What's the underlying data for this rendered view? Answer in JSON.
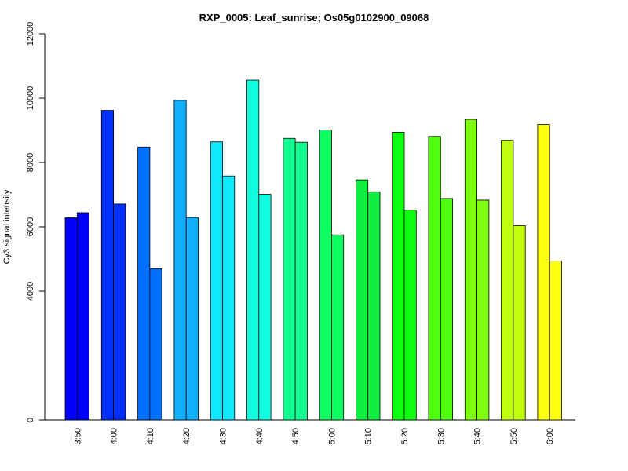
{
  "chart_data": {
    "type": "bar",
    "title": "RXP_0005: Leaf_sunrise; Os05g0102900_09068",
    "xlabel": "",
    "ylabel": "Cy3 signal intensity",
    "ylim": [
      0,
      12000
    ],
    "yticks": [
      0,
      4000,
      6000,
      8000,
      10000,
      12000
    ],
    "grid": false,
    "legend": "none",
    "categories": [
      "3:50",
      "4:00",
      "4:10",
      "4:20",
      "4:30",
      "4:40",
      "4:50",
      "5:00",
      "5:10",
      "5:20",
      "5:30",
      "5:40",
      "5:50",
      "6:00"
    ],
    "colors": [
      "#0000ff",
      "#0030ff",
      "#0070ff",
      "#10b0ff",
      "#10e8ff",
      "#10ffe0",
      "#10ff90",
      "#10ff60",
      "#10ee40",
      "#10ff10",
      "#50ff10",
      "#80ff10",
      "#c0ff10",
      "#ffff10"
    ],
    "series": [
      {
        "values": [
          6280,
          9620,
          8480,
          9930,
          8640,
          10560,
          8750,
          9010,
          7460,
          8940,
          8810,
          9340,
          8690,
          9180
        ]
      },
      {
        "values": [
          6440,
          6710,
          4700,
          6290,
          7580,
          7010,
          8630,
          5750,
          7090,
          6520,
          6880,
          6830,
          6040,
          4940
        ]
      }
    ]
  }
}
